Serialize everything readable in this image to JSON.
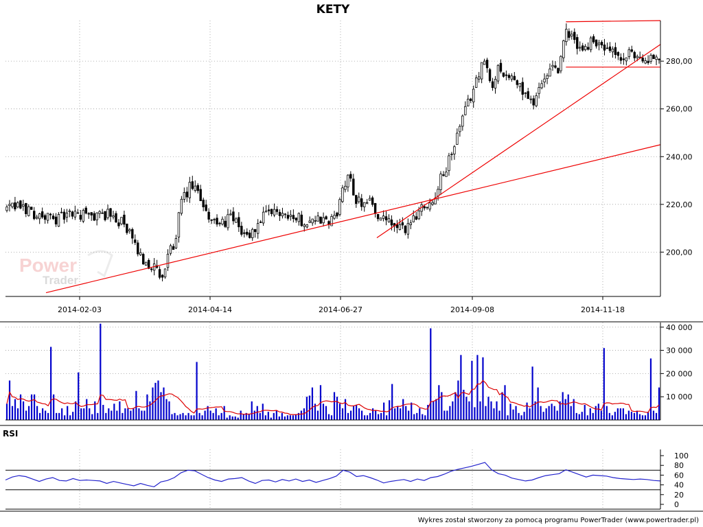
{
  "chart_data": {
    "title": "KETY",
    "type": "candlestick",
    "x_ticks": [
      "2014-02-03",
      "2014-04-14",
      "2014-06-27",
      "2014-09-08",
      "2014-11-18"
    ],
    "price_panel": {
      "y_ticks": [
        "200,00",
        "220,00",
        "240,00",
        "260,00",
        "280,00"
      ],
      "ylim": [
        182,
        297
      ],
      "grid": true,
      "trendlines": [
        {
          "from": [
            12,
            183
          ],
          "to": [
            194,
            245
          ]
        },
        {
          "from": [
            110,
            206
          ],
          "to": [
            194,
            287
          ]
        },
        {
          "from": [
            166,
            296.5
          ],
          "to": [
            194,
            297
          ]
        },
        {
          "from": [
            166,
            277.5
          ],
          "to": [
            194,
            277.5
          ]
        }
      ],
      "close_path": [
        [
          0,
          218
        ],
        [
          5,
          219
        ],
        [
          10,
          215
        ],
        [
          15,
          214
        ],
        [
          20,
          216
        ],
        [
          25,
          215
        ],
        [
          30,
          216
        ],
        [
          35,
          212
        ],
        [
          40,
          198
        ],
        [
          45,
          192
        ],
        [
          46,
          187
        ],
        [
          47,
          190
        ],
        [
          48,
          198
        ],
        [
          50,
          204
        ],
        [
          52,
          220
        ],
        [
          55,
          228
        ],
        [
          58,
          222
        ],
        [
          60,
          216
        ],
        [
          62,
          212
        ],
        [
          64,
          211
        ],
        [
          66,
          215
        ],
        [
          68,
          212
        ],
        [
          70,
          209
        ],
        [
          72,
          206
        ],
        [
          74,
          210
        ],
        [
          76,
          214
        ],
        [
          80,
          217
        ],
        [
          84,
          216
        ],
        [
          88,
          213
        ],
        [
          92,
          214
        ],
        [
          96,
          212
        ],
        [
          98,
          216
        ],
        [
          100,
          226
        ],
        [
          102,
          232
        ],
        [
          104,
          221
        ],
        [
          108,
          222
        ],
        [
          110,
          216
        ],
        [
          112,
          213
        ],
        [
          114,
          212
        ],
        [
          116,
          210
        ],
        [
          118,
          209
        ],
        [
          120,
          213
        ],
        [
          122,
          216
        ],
        [
          124,
          221
        ],
        [
          126,
          220
        ],
        [
          128,
          227
        ],
        [
          130,
          234
        ],
        [
          132,
          240
        ],
        [
          134,
          250
        ],
        [
          136,
          258
        ],
        [
          138,
          266
        ],
        [
          140,
          275
        ],
        [
          142,
          280
        ],
        [
          144,
          268
        ],
        [
          146,
          278
        ],
        [
          148,
          275
        ],
        [
          150,
          272
        ],
        [
          152,
          270
        ],
        [
          154,
          266
        ],
        [
          156,
          262
        ],
        [
          158,
          269
        ],
        [
          160,
          272
        ],
        [
          162,
          276
        ],
        [
          164,
          277
        ],
        [
          166,
          292
        ],
        [
          168,
          290
        ],
        [
          170,
          285
        ],
        [
          172,
          286
        ],
        [
          174,
          289
        ],
        [
          176,
          287
        ],
        [
          178,
          284
        ],
        [
          180,
          283
        ],
        [
          183,
          280
        ],
        [
          185,
          283
        ],
        [
          188,
          282
        ],
        [
          191,
          280
        ],
        [
          194,
          282
        ]
      ]
    },
    "volume_panel": {
      "y_ticks": [
        "10 000",
        "20 000",
        "30 000",
        "40 000"
      ],
      "ylim": [
        0,
        42000
      ],
      "bar_color": "#0000cc",
      "ma_color": "#dd0000",
      "volumes": [
        7000,
        17000,
        6000,
        9000,
        5000,
        11000,
        8000,
        4000,
        6000,
        11000,
        11000,
        6000,
        3000,
        5000,
        4000,
        3000,
        31500,
        11000,
        3000,
        3000,
        5000,
        2000,
        6000,
        2000,
        3500,
        8000,
        20500,
        5000,
        5000,
        9000,
        5000,
        2500,
        8000,
        3000,
        41500,
        6500,
        3000,
        5000,
        4000,
        7000,
        4000,
        8000,
        3000,
        5000,
        5000,
        4000,
        5000,
        12500,
        5000,
        4000,
        4000,
        11000,
        8000,
        14000,
        16000,
        17000,
        12000,
        14000,
        9000,
        8000,
        2500,
        3000,
        2000,
        2500,
        3000,
        2000,
        3000,
        2000,
        2000,
        25000,
        3000,
        2000,
        4000,
        6000,
        4000,
        3000,
        5000,
        2000,
        3000,
        6000,
        1000,
        2000,
        1500,
        1500,
        1000,
        4000,
        2500,
        3000,
        2500,
        8000,
        4000,
        6000,
        3000,
        7000,
        2000,
        3500,
        1000,
        3000,
        4000,
        1500,
        3000,
        1500,
        2000,
        2000,
        2000,
        2500,
        3000,
        4000,
        5000,
        10000,
        10500,
        14000,
        7000,
        4000,
        15000,
        7000,
        6000,
        2500,
        2000,
        12000,
        10000,
        7000,
        5000,
        9000,
        3000,
        4000,
        6000,
        6500,
        5000,
        4000,
        2000,
        2000,
        3000,
        5000,
        4000,
        2500,
        3000,
        7500,
        2000,
        8500,
        15500,
        5000,
        6000,
        5000,
        9000,
        6000,
        4000,
        7500,
        2500,
        3000,
        5000,
        2500,
        2000,
        6500,
        39500,
        8000,
        9000,
        15000,
        12000,
        4000,
        4000,
        6000,
        8000,
        12000,
        17000,
        28000,
        13000,
        10000,
        8000,
        25500,
        5500,
        28000,
        8000,
        27000,
        6000,
        10000,
        8000,
        5000,
        8000,
        4000,
        12000,
        15000,
        2000,
        7000,
        4500,
        6000,
        3000,
        2000,
        3500,
        7500,
        5000,
        23000,
        8000,
        14000,
        6000,
        3500,
        5000,
        6000,
        7000,
        6000,
        4000,
        8000,
        12000,
        9000,
        11000,
        6000,
        9000,
        3000,
        2500,
        3500,
        6500,
        2000,
        5000,
        3000,
        6000,
        7000,
        4000,
        31000,
        6000,
        3000,
        2000,
        3500,
        5000,
        5000,
        5000,
        2500,
        4000,
        3500,
        3000,
        4000,
        2500,
        2000,
        2000,
        3500,
        26500,
        4000,
        3000,
        14000
      ]
    },
    "rsi_panel": {
      "label": "RSI",
      "y_ticks": [
        "0",
        "20",
        "40",
        "60",
        "80",
        "100"
      ],
      "ylim": [
        0,
        100
      ],
      "levels": [
        30,
        70
      ],
      "line_color": "#2222cc",
      "path": [
        [
          0,
          50
        ],
        [
          2,
          56
        ],
        [
          4,
          59
        ],
        [
          6,
          57
        ],
        [
          8,
          52
        ],
        [
          10,
          47
        ],
        [
          12,
          52
        ],
        [
          14,
          55
        ],
        [
          16,
          49
        ],
        [
          18,
          48
        ],
        [
          20,
          53
        ],
        [
          22,
          49
        ],
        [
          24,
          50
        ],
        [
          26,
          49
        ],
        [
          28,
          48
        ],
        [
          30,
          43
        ],
        [
          32,
          47
        ],
        [
          34,
          44
        ],
        [
          36,
          41
        ],
        [
          38,
          38
        ],
        [
          40,
          43
        ],
        [
          42,
          39
        ],
        [
          44,
          36
        ],
        [
          45,
          41
        ],
        [
          46,
          46
        ],
        [
          48,
          49
        ],
        [
          50,
          55
        ],
        [
          52,
          65
        ],
        [
          54,
          70
        ],
        [
          56,
          69
        ],
        [
          58,
          62
        ],
        [
          60,
          55
        ],
        [
          62,
          50
        ],
        [
          64,
          47
        ],
        [
          66,
          52
        ],
        [
          68,
          53
        ],
        [
          70,
          55
        ],
        [
          72,
          48
        ],
        [
          74,
          43
        ],
        [
          76,
          49
        ],
        [
          78,
          50
        ],
        [
          80,
          46
        ],
        [
          82,
          51
        ],
        [
          84,
          48
        ],
        [
          86,
          52
        ],
        [
          88,
          47
        ],
        [
          90,
          50
        ],
        [
          92,
          45
        ],
        [
          94,
          49
        ],
        [
          96,
          53
        ],
        [
          98,
          58
        ],
        [
          100,
          70
        ],
        [
          102,
          66
        ],
        [
          104,
          57
        ],
        [
          106,
          59
        ],
        [
          108,
          55
        ],
        [
          110,
          50
        ],
        [
          112,
          44
        ],
        [
          114,
          47
        ],
        [
          116,
          49
        ],
        [
          118,
          51
        ],
        [
          120,
          47
        ],
        [
          122,
          52
        ],
        [
          124,
          49
        ],
        [
          126,
          55
        ],
        [
          128,
          57
        ],
        [
          130,
          62
        ],
        [
          132,
          68
        ],
        [
          134,
          72
        ],
        [
          136,
          75
        ],
        [
          138,
          78
        ],
        [
          140,
          82
        ],
        [
          142,
          86
        ],
        [
          144,
          71
        ],
        [
          146,
          63
        ],
        [
          148,
          60
        ],
        [
          150,
          54
        ],
        [
          152,
          51
        ],
        [
          154,
          48
        ],
        [
          156,
          50
        ],
        [
          158,
          55
        ],
        [
          160,
          59
        ],
        [
          162,
          61
        ],
        [
          164,
          63
        ],
        [
          166,
          71
        ],
        [
          168,
          66
        ],
        [
          170,
          61
        ],
        [
          172,
          56
        ],
        [
          174,
          60
        ],
        [
          176,
          59
        ],
        [
          178,
          58
        ],
        [
          180,
          55
        ],
        [
          182,
          53
        ],
        [
          184,
          52
        ],
        [
          186,
          51
        ],
        [
          188,
          52
        ],
        [
          190,
          51
        ],
        [
          192,
          49
        ],
        [
          194,
          48
        ]
      ]
    }
  },
  "footer_text": "Wykres został stworzony za pomocą programu PowerTrader (www.powertrader.pl)",
  "watermark": {
    "line1": "Power",
    "line2": "Trader"
  },
  "colors": {
    "candle": "#000000",
    "trendline": "#ee0000"
  }
}
